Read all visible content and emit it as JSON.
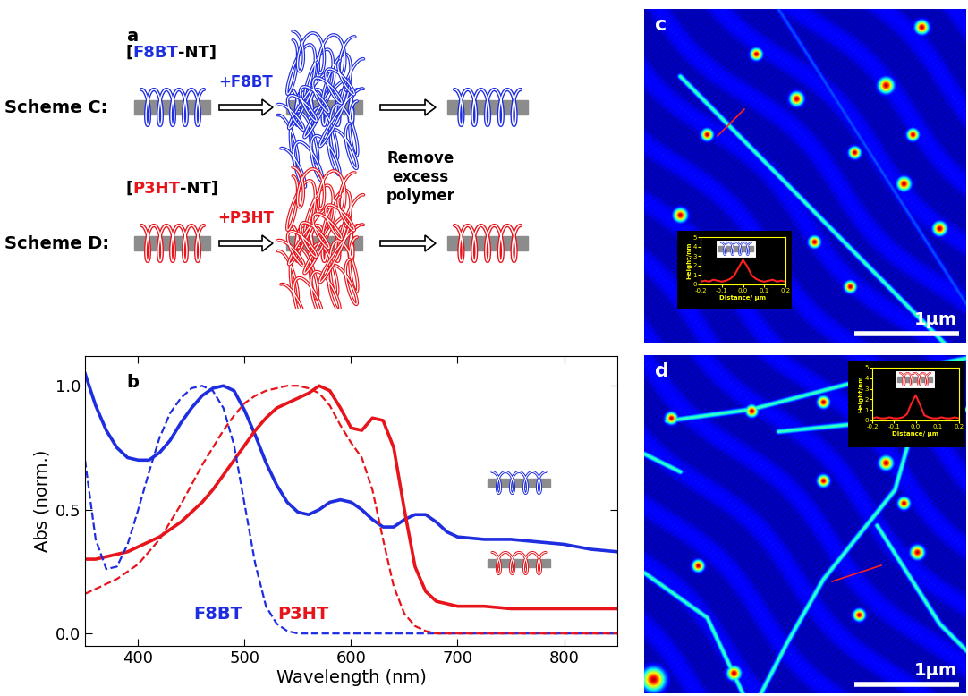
{
  "panel_a": {
    "label": "a",
    "schemes": [
      {
        "name": "Scheme C:",
        "complex": [
          "[",
          "F8BT",
          "-NT]"
        ],
        "addition": "+F8BT",
        "color": "#1f2de0"
      },
      {
        "name": "Scheme D:",
        "complex": [
          "[",
          "P3HT",
          "-NT]"
        ],
        "addition": "+P3HT",
        "color": "#e8141b"
      }
    ],
    "step_label": "Remove\nexcess\npolymer"
  },
  "chart_data": [
    {
      "type": "line",
      "title": "b",
      "x_label": "Wavelength (nm)",
      "y_label": "Abs (norm.)",
      "x": [
        350,
        360,
        370,
        380,
        390,
        400,
        410,
        420,
        430,
        440,
        450,
        460,
        470,
        480,
        490,
        500,
        510,
        520,
        530,
        540,
        550,
        560,
        570,
        580,
        590,
        600,
        610,
        620,
        630,
        640,
        650,
        660,
        670,
        680,
        690,
        700,
        725,
        750,
        775,
        800,
        825,
        850
      ],
      "xlim": [
        350,
        850
      ],
      "ylim": [
        -0.05,
        1.12
      ],
      "xticks": [
        400,
        500,
        600,
        700,
        800
      ],
      "yticks": [
        {
          "value": 0,
          "label": "0.0"
        },
        {
          "value": 0.5,
          "label": "0.5"
        },
        {
          "value": 1,
          "label": "1.0"
        }
      ],
      "series": [
        {
          "color": "#1f2de0",
          "line_style": "solid",
          "values": [
            1.05,
            0.92,
            0.82,
            0.75,
            0.71,
            0.7,
            0.7,
            0.73,
            0.78,
            0.85,
            0.91,
            0.96,
            0.99,
            1.0,
            0.98,
            0.9,
            0.8,
            0.69,
            0.6,
            0.53,
            0.49,
            0.48,
            0.5,
            0.53,
            0.54,
            0.53,
            0.5,
            0.46,
            0.43,
            0.43,
            0.46,
            0.48,
            0.48,
            0.45,
            0.41,
            0.39,
            0.38,
            0.38,
            0.37,
            0.36,
            0.34,
            0.33
          ]
        },
        {
          "color": "#e8141b",
          "line_style": "solid",
          "values": [
            0.3,
            0.3,
            0.31,
            0.32,
            0.33,
            0.35,
            0.37,
            0.39,
            0.42,
            0.45,
            0.49,
            0.53,
            0.58,
            0.64,
            0.7,
            0.76,
            0.82,
            0.87,
            0.91,
            0.93,
            0.95,
            0.97,
            1.0,
            0.98,
            0.91,
            0.83,
            0.82,
            0.87,
            0.86,
            0.75,
            0.5,
            0.27,
            0.17,
            0.13,
            0.12,
            0.11,
            0.11,
            0.1,
            0.1,
            0.1,
            0.1,
            0.1
          ]
        },
        {
          "name": "F8BT",
          "color": "#1f2de0",
          "line_style": "dashed",
          "values": [
            0.7,
            0.38,
            0.26,
            0.27,
            0.36,
            0.5,
            0.65,
            0.79,
            0.89,
            0.95,
            0.99,
            1.0,
            0.98,
            0.91,
            0.76,
            0.52,
            0.28,
            0.11,
            0.04,
            0.01,
            0.0,
            0.0,
            0.0,
            0.0,
            0.0,
            0.0,
            0.0,
            0.0,
            0.0,
            0.0,
            0.0,
            0.0,
            0.0,
            0.0,
            0.0,
            0.0,
            0.0,
            0.0,
            0.0,
            0.0,
            0.0,
            0.0
          ]
        },
        {
          "name": "P3HT",
          "color": "#e8141b",
          "line_style": "dashed",
          "values": [
            0.16,
            0.18,
            0.2,
            0.22,
            0.25,
            0.28,
            0.33,
            0.38,
            0.45,
            0.52,
            0.6,
            0.68,
            0.75,
            0.82,
            0.88,
            0.93,
            0.96,
            0.98,
            0.99,
            1.0,
            1.0,
            0.99,
            0.97,
            0.92,
            0.84,
            0.77,
            0.71,
            0.58,
            0.38,
            0.19,
            0.08,
            0.03,
            0.01,
            0.0,
            0.0,
            0.0,
            0.0,
            0.0,
            0.0,
            0.0,
            0.0,
            0.0
          ]
        }
      ]
    },
    {
      "type": "line",
      "x_label": "Distance/ μm",
      "y_label": "Height/nm",
      "color": "#ff2020",
      "x": [
        -0.2,
        -0.18,
        -0.16,
        -0.14,
        -0.12,
        -0.1,
        -0.08,
        -0.06,
        -0.04,
        -0.02,
        0.0,
        0.02,
        0.04,
        0.06,
        0.08,
        0.1,
        0.12,
        0.14,
        0.16,
        0.18,
        0.2
      ],
      "values": [
        0.3,
        0.4,
        0.3,
        0.5,
        0.4,
        0.3,
        0.4,
        0.6,
        1.0,
        1.8,
        2.6,
        1.9,
        1.0,
        0.6,
        0.4,
        0.3,
        0.4,
        0.5,
        0.3,
        0.4,
        0.3
      ],
      "xlim": [
        -0.2,
        0.2
      ],
      "ylim": [
        0,
        5
      ],
      "xticks": [
        -0.2,
        -0.1,
        {
          "value": 0,
          "label": "0.0"
        },
        0.1,
        0.2
      ],
      "yticks": [
        0,
        1,
        2,
        3,
        4,
        5
      ]
    },
    {
      "type": "line",
      "x_label": "Distance/ μm",
      "y_label": "Height/nm",
      "color": "#ff2020",
      "x": [
        -0.2,
        -0.18,
        -0.16,
        -0.14,
        -0.12,
        -0.1,
        -0.08,
        -0.06,
        -0.04,
        -0.02,
        0.0,
        0.02,
        0.04,
        0.06,
        0.08,
        0.1,
        0.12,
        0.14,
        0.16,
        0.18,
        0.2
      ],
      "values": [
        0.2,
        0.3,
        0.2,
        0.2,
        0.3,
        0.2,
        0.2,
        0.3,
        0.6,
        1.6,
        2.4,
        1.5,
        0.5,
        0.3,
        0.2,
        0.2,
        0.3,
        0.2,
        0.2,
        0.3,
        0.2
      ],
      "xlim": [
        -0.2,
        0.2
      ],
      "ylim": [
        0,
        5
      ],
      "xticks": [
        -0.2,
        -0.1,
        {
          "value": 0,
          "label": "0.0"
        },
        0.1,
        0.2
      ],
      "yticks": [
        0,
        1,
        2,
        3,
        4,
        5
      ]
    }
  ],
  "panel_c": {
    "label": "c",
    "scale_bar": "1μm"
  },
  "panel_d": {
    "label": "d",
    "scale_bar": "1μm"
  }
}
